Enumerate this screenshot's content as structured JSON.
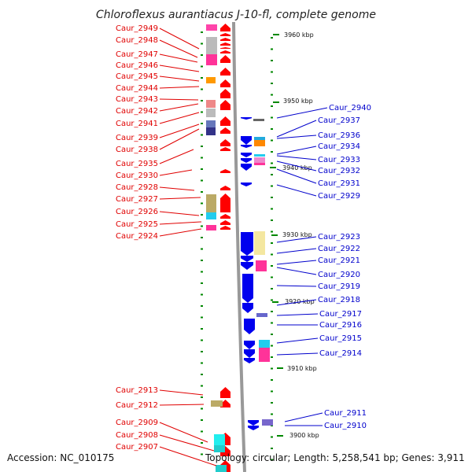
{
  "title": "Chloroflexus aurantiacus J-10-fl, complete genome",
  "accession": "Accession: NC_010175",
  "summary": "Topology: circular; Length: 5,258,541 bp; Genes: 3,911",
  "colors": {
    "left_label": "#e00000",
    "right_label": "#0000cc",
    "forward_gene": "#ff0000",
    "reverse_gene": "#0000ee",
    "tick": "#008800",
    "backbone": "#888888"
  },
  "kbp_marks": [
    {
      "label": "3960 kbp"
    },
    {
      "label": "3950 kbp"
    },
    {
      "label": "3940 kbp"
    },
    {
      "label": "3930 kbp"
    },
    {
      "label": "3920 kbp"
    },
    {
      "label": "3910 kbp"
    },
    {
      "label": "3900 kbp"
    }
  ],
  "left_genes": [
    {
      "label": "Caur_2949"
    },
    {
      "label": "Caur_2948"
    },
    {
      "label": "Caur_2947"
    },
    {
      "label": "Caur_2946"
    },
    {
      "label": "Caur_2945"
    },
    {
      "label": "Caur_2944"
    },
    {
      "label": "Caur_2943"
    },
    {
      "label": "Caur_2942"
    },
    {
      "label": "Caur_2941"
    },
    {
      "label": "Caur_2939"
    },
    {
      "label": "Caur_2938"
    },
    {
      "label": "Caur_2935"
    },
    {
      "label": "Caur_2930"
    },
    {
      "label": "Caur_2928"
    },
    {
      "label": "Caur_2927"
    },
    {
      "label": "Caur_2926"
    },
    {
      "label": "Caur_2925"
    },
    {
      "label": "Caur_2924"
    },
    {
      "label": "Caur_2913"
    },
    {
      "label": "Caur_2912"
    },
    {
      "label": "Caur_2909"
    },
    {
      "label": "Caur_2908"
    },
    {
      "label": "Caur_2907"
    }
  ],
  "right_genes": [
    {
      "label": "Caur_2940"
    },
    {
      "label": "Caur_2937"
    },
    {
      "label": "Caur_2936"
    },
    {
      "label": "Caur_2934"
    },
    {
      "label": "Caur_2933"
    },
    {
      "label": "Caur_2932"
    },
    {
      "label": "Caur_2931"
    },
    {
      "label": "Caur_2929"
    },
    {
      "label": "Caur_2923"
    },
    {
      "label": "Caur_2922"
    },
    {
      "label": "Caur_2921"
    },
    {
      "label": "Caur_2920"
    },
    {
      "label": "Caur_2919"
    },
    {
      "label": "Caur_2918"
    },
    {
      "label": "Caur_2917"
    },
    {
      "label": "Caur_2916"
    },
    {
      "label": "Caur_2915"
    },
    {
      "label": "Caur_2914"
    },
    {
      "label": "Caur_2911"
    },
    {
      "label": "Caur_2910"
    }
  ]
}
